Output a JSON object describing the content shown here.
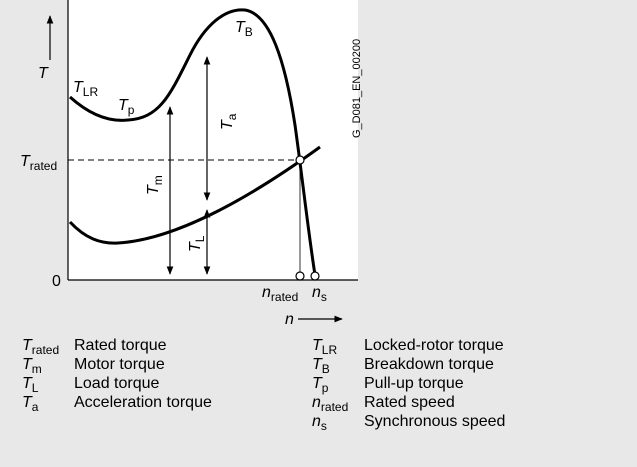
{
  "axis": {
    "y_label": "T",
    "x_label": "n",
    "origin": "0"
  },
  "figure_id": "G_D081_EN_00200",
  "curve_labels": {
    "locked_rotor": {
      "symbol": "T",
      "sub": "LR"
    },
    "pull_up": {
      "symbol": "T",
      "sub": "p"
    },
    "breakdown": {
      "symbol": "T",
      "sub": "B"
    },
    "rated": {
      "symbol": "T",
      "sub": "rated"
    },
    "acceleration": {
      "symbol": "T",
      "sub": "a"
    },
    "motor": {
      "symbol": "T",
      "sub": "m"
    },
    "load": {
      "symbol": "T",
      "sub": "L"
    },
    "rated_speed": {
      "symbol": "n",
      "sub": "rated"
    },
    "sync_speed": {
      "symbol": "n",
      "sub": "s"
    }
  },
  "legend": [
    {
      "symbol": "T",
      "sub": "rated",
      "text": "Rated torque"
    },
    {
      "symbol": "T",
      "sub": "m",
      "text": "Motor torque"
    },
    {
      "symbol": "T",
      "sub": "L",
      "text": "Load torque"
    },
    {
      "symbol": "T",
      "sub": "a",
      "text": "Acceleration torque"
    },
    {
      "symbol": "T",
      "sub": "LR",
      "text": "Locked-rotor torque"
    },
    {
      "symbol": "T",
      "sub": "B",
      "text": "Breakdown torque"
    },
    {
      "symbol": "T",
      "sub": "p",
      "text": "Pull-up torque"
    },
    {
      "symbol": "n",
      "sub": "rated",
      "text": "Rated speed"
    },
    {
      "symbol": "n",
      "sub": "s",
      "text": "Synchronous speed"
    }
  ]
}
